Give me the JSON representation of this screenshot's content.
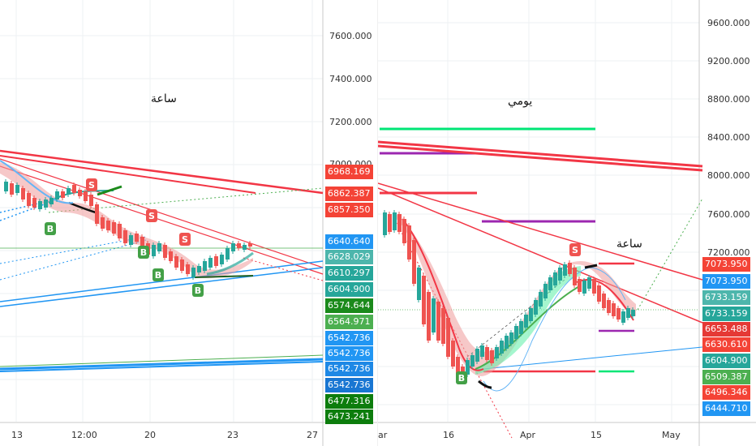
{
  "left": {
    "title": "ساعة",
    "x_ticks": [
      "13",
      "12:00",
      "20",
      "23",
      "27"
    ],
    "y_ticks": [
      "7600.000",
      "7400.000",
      "7200.000",
      "7000.000"
    ],
    "tags": [
      {
        "text": "6968.169",
        "color": "#f44336"
      },
      {
        "text": "6862.387",
        "color": "#f44336"
      },
      {
        "text": "6857.350",
        "color": "#f44336"
      },
      {
        "text": "6640.640",
        "color": "#2196f3"
      },
      {
        "text": "6628.029",
        "color": "#4db6ac"
      },
      {
        "text": "6610.297",
        "color": "#26a69a"
      },
      {
        "text": "6604.900",
        "color": "#26a69a"
      },
      {
        "text": "6574.644",
        "color": "#1b8a1b"
      },
      {
        "text": "6564.971",
        "color": "#4caf50"
      },
      {
        "text": "6542.736",
        "color": "#2196f3"
      },
      {
        "text": "6542.736",
        "color": "#2196f3"
      },
      {
        "text": "6542.736",
        "color": "#1e88e5"
      },
      {
        "text": "6542.736",
        "color": "#1976d2"
      },
      {
        "text": "6477.316",
        "color": "#0d7d0d"
      },
      {
        "text": "6473.241",
        "color": "#0d7d0d"
      }
    ],
    "signals": [
      {
        "text": "S",
        "color": "#ef5350"
      },
      {
        "text": "S",
        "color": "#ef5350"
      },
      {
        "text": "S",
        "color": "#ef5350"
      },
      {
        "text": "B",
        "color": "#43a047"
      },
      {
        "text": "B",
        "color": "#43a047"
      },
      {
        "text": "B",
        "color": "#43a047"
      },
      {
        "text": "B",
        "color": "#43a047"
      }
    ]
  },
  "right": {
    "title": "يومي",
    "annotation": "ساعة",
    "x_ticks": [
      "ar",
      "16",
      "Apr",
      "15",
      "May"
    ],
    "y_ticks": [
      "9600.000",
      "9200.000",
      "8800.000",
      "8400.000",
      "8000.000",
      "7600.000",
      "7200.000"
    ],
    "tags": [
      {
        "text": "7073.950",
        "color": "#f44336"
      },
      {
        "text": "7073.950",
        "color": "#2196f3"
      },
      {
        "text": "6733.159",
        "color": "#4db6ac"
      },
      {
        "text": "6733.159",
        "color": "#26a69a"
      },
      {
        "text": "6653.488",
        "color": "#e53935"
      },
      {
        "text": "6630.610",
        "color": "#f44336"
      },
      {
        "text": "6604.900",
        "color": "#26a69a"
      },
      {
        "text": "6509.387",
        "color": "#4caf50"
      },
      {
        "text": "6496.346",
        "color": "#f44336"
      },
      {
        "text": "6444.710",
        "color": "#2196f3"
      }
    ],
    "signals": [
      {
        "text": "S",
        "color": "#ef5350"
      },
      {
        "text": "B",
        "color": "#43a047"
      }
    ]
  },
  "colors": {
    "up": "#26a69a",
    "down": "#ef5350",
    "trend_red": "#f23645",
    "trend_blue": "#2196f3",
    "trend_green": "#00e676",
    "trend_purple": "#9c27b0"
  }
}
